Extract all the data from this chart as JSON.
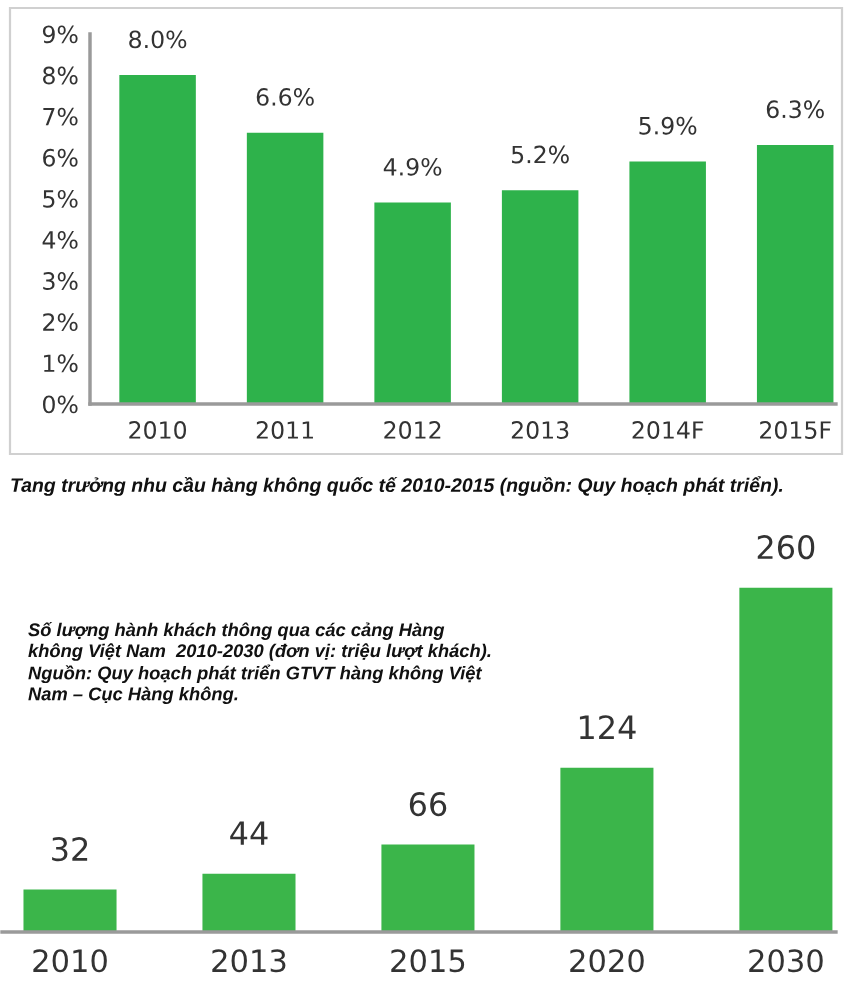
{
  "chart_data": [
    {
      "type": "bar",
      "categories": [
        "2010",
        "2011",
        "2012",
        "2013",
        "2014F",
        "2015F"
      ],
      "values": [
        8.0,
        6.6,
        4.9,
        5.2,
        5.9,
        6.3
      ],
      "color": "#2eb24b",
      "value_labels": [
        "8.0%",
        "6.6%",
        "4.9%",
        "5.2%",
        "5.9%",
        "6.3%"
      ],
      "ylim": [
        0,
        9
      ],
      "yticks": [
        {
          "value": 0,
          "label": "0%"
        },
        {
          "value": 1,
          "label": "1%"
        },
        {
          "value": 2,
          "label": "2%"
        },
        {
          "value": 3,
          "label": "3%"
        },
        {
          "value": 4,
          "label": "4%"
        },
        {
          "value": 5,
          "label": "5%"
        },
        {
          "value": 6,
          "label": "6%"
        },
        {
          "value": 7,
          "label": "7%"
        },
        {
          "value": 8,
          "label": "8%"
        },
        {
          "value": 9,
          "label": "9%"
        }
      ],
      "annotations": [
        "Tang trưởng nhu cầu hàng không quốc tế 2010-2015 (nguồn: Quy hoạch phát triển)."
      ]
    },
    {
      "type": "bar",
      "categories": [
        "2010",
        "2013",
        "2015",
        "2020",
        "2030"
      ],
      "values": [
        32,
        44,
        66,
        124,
        260
      ],
      "color": "#3bb54a",
      "data_labels": true,
      "tick_labels": "x",
      "annotations": [
        "Số lượng hành khách thông qua các cảng Hàng\nkhông Việt Nam  2010-2030 (đơn vị: triệu lượt khách).\nNguồn: Quy hoạch phát triển GTVT hàng không Việt\nNam – Cục Hàng không."
      ]
    }
  ]
}
